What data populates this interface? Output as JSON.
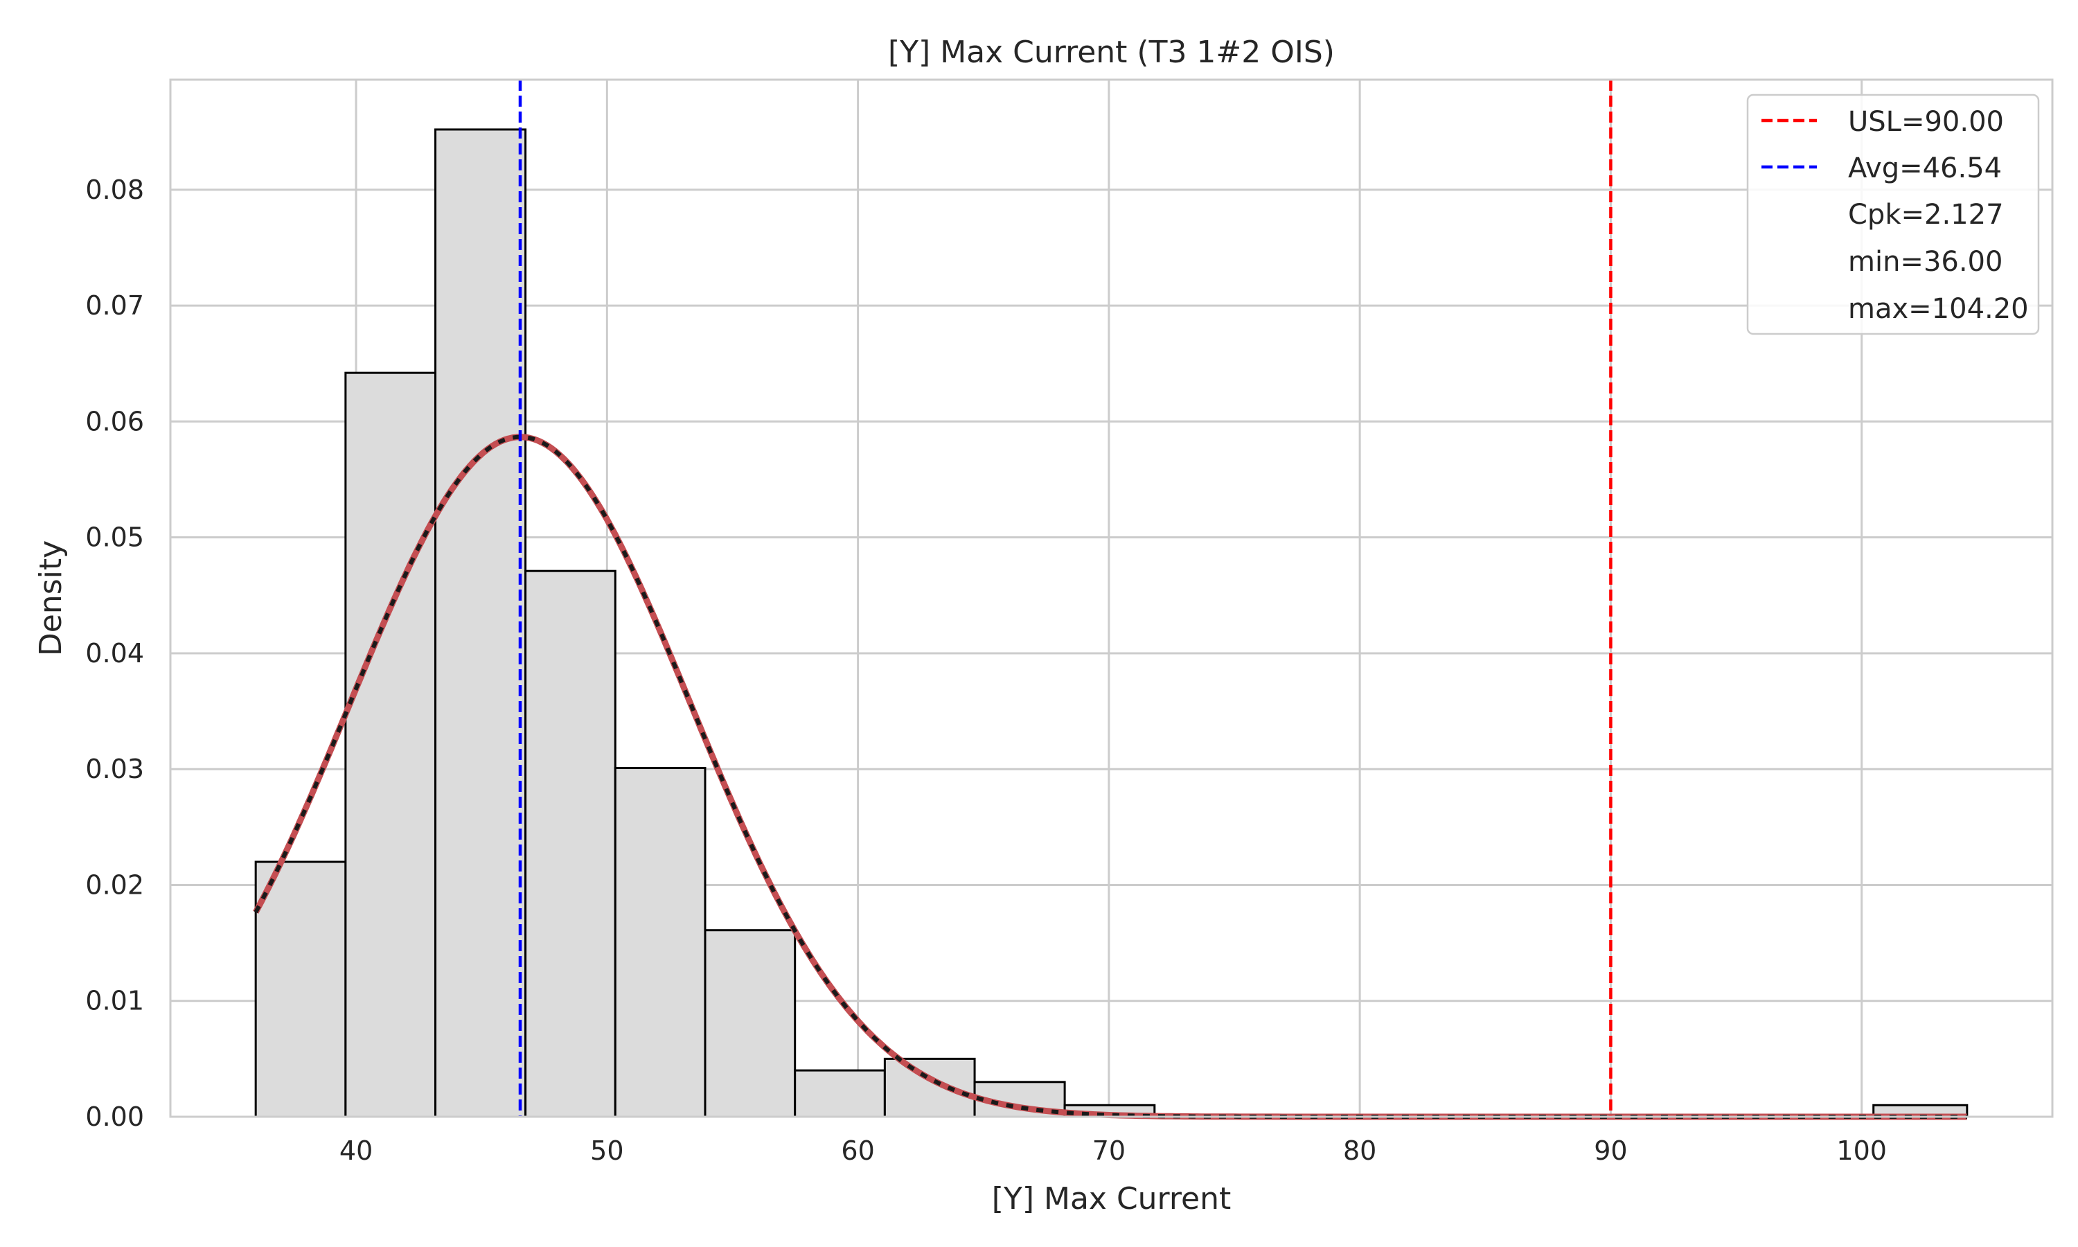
{
  "chart_data": {
    "type": "bar",
    "title": "[Y] Max Current (T3 1#2 OIS)",
    "xlabel": "[Y] Max Current",
    "ylabel": "Density",
    "xlim": [
      32.6,
      107.6
    ],
    "ylim": [
      0,
      0.0895
    ],
    "x_ticks": [
      40,
      50,
      60,
      70,
      80,
      90,
      100
    ],
    "x_tick_labels": [
      "40",
      "50",
      "60",
      "70",
      "80",
      "90",
      "100"
    ],
    "y_ticks": [
      0,
      0.01,
      0.02,
      0.03,
      0.04,
      0.05,
      0.06,
      0.07,
      0.08
    ],
    "y_tick_labels": [
      "0.00",
      "0.01",
      "0.02",
      "0.03",
      "0.04",
      "0.05",
      "0.06",
      "0.07",
      "0.08"
    ],
    "grid": true,
    "legend_position": "top-right",
    "bin_edges": [
      36.0,
      39.58,
      43.16,
      46.75,
      50.33,
      53.91,
      57.49,
      61.07,
      64.65,
      68.24,
      71.82,
      75.4,
      78.98,
      82.56,
      86.14,
      89.73,
      93.31,
      96.89,
      100.47,
      104.2
    ],
    "densities": [
      0.022,
      0.0642,
      0.0852,
      0.0471,
      0.0301,
      0.0161,
      0.004,
      0.005,
      0.003,
      0.001,
      0,
      0,
      0,
      0,
      0,
      0,
      0,
      0,
      0.001
    ],
    "fit_curve": {
      "type": "normal",
      "mean": 46.54,
      "std": 6.8,
      "color": "#c44e52"
    },
    "reference_lines": [
      {
        "name": "USL=90.00",
        "x": 90.0,
        "color": "#ff0000",
        "style": "dashed"
      },
      {
        "name": "Avg=46.54",
        "x": 46.54,
        "color": "#0000ff",
        "style": "dashed"
      }
    ],
    "legend_extra": [
      "Cpk=2.127",
      "min=36.00",
      "max=104.20"
    ],
    "colors": {
      "bar_fill": "#dcdcdc",
      "bar_edge": "#000000",
      "grid": "#cccccc",
      "frame": "#cccccc"
    }
  }
}
